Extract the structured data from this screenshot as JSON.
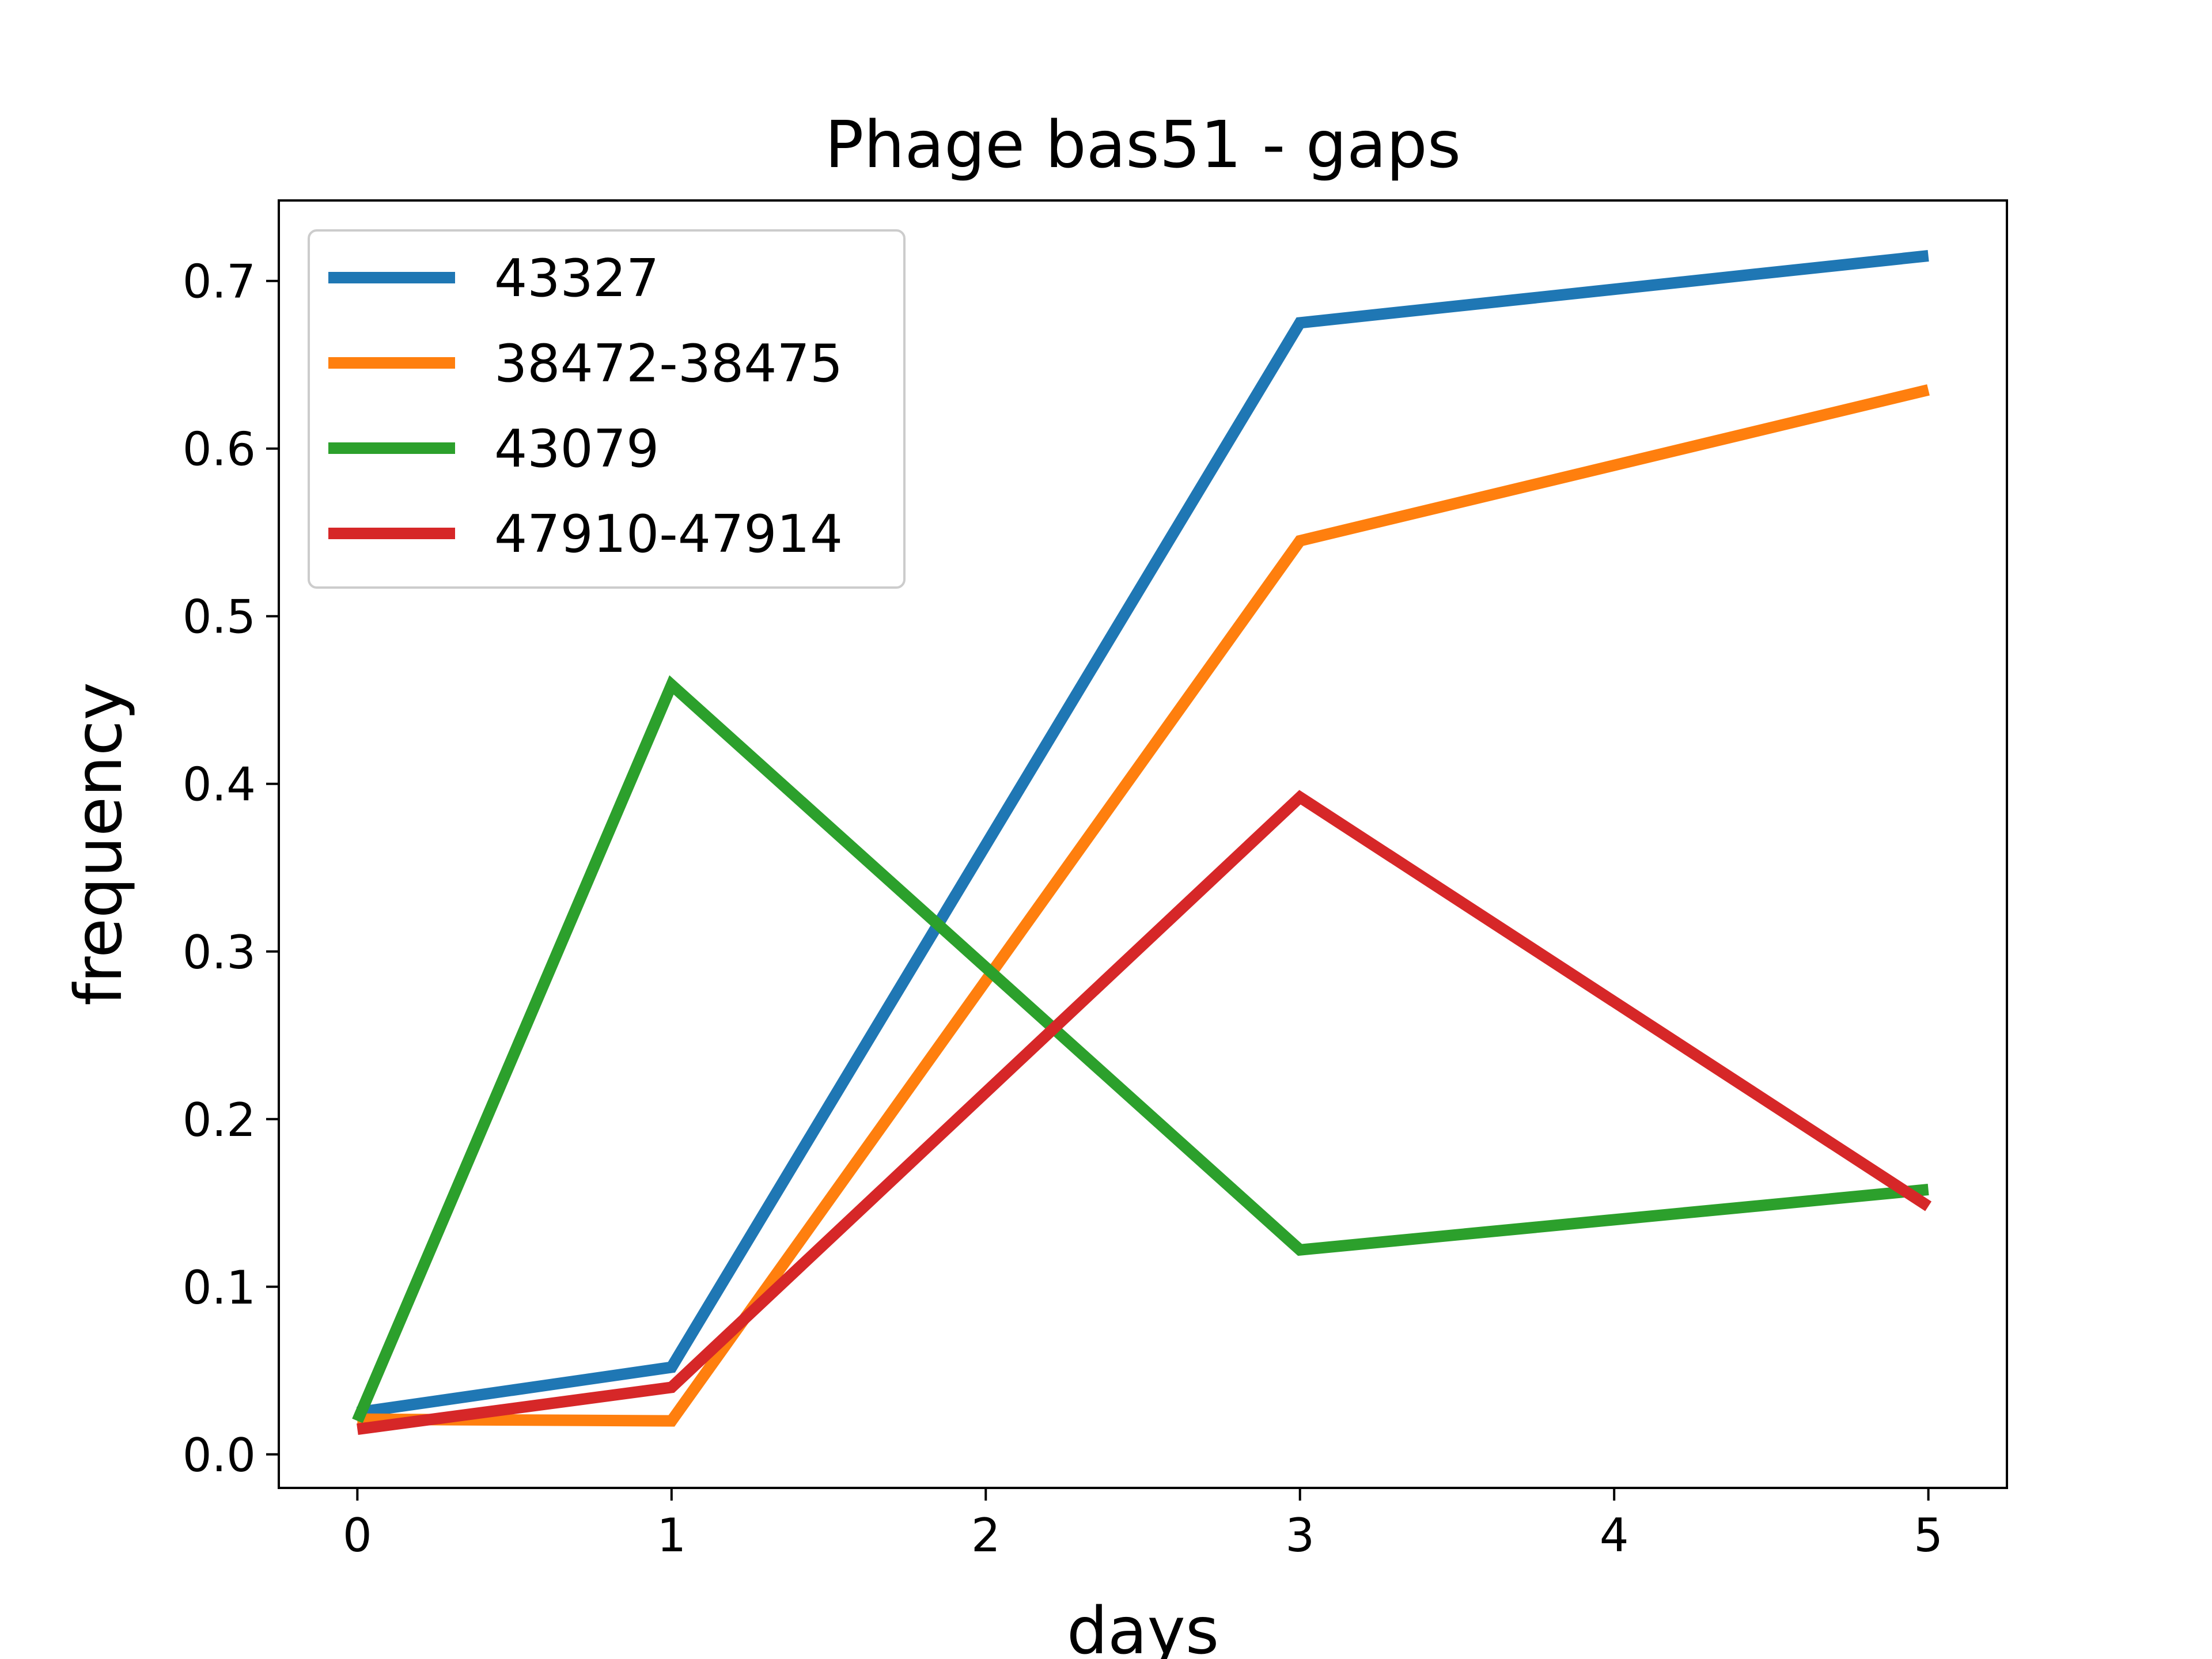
{
  "chart_data": {
    "type": "line",
    "title": "Phage bas51 - gaps",
    "xlabel": "days",
    "ylabel": "frequency",
    "x": [
      0,
      1,
      3,
      5
    ],
    "xlim": [
      -0.25,
      5.25
    ],
    "ylim": [
      -0.02,
      0.748
    ],
    "xticks": [
      0,
      1,
      2,
      3,
      4,
      5
    ],
    "yticks": [
      0.0,
      0.1,
      0.2,
      0.3,
      0.4,
      0.5,
      0.6,
      0.7
    ],
    "ytick_labels": [
      "0.0",
      "0.1",
      "0.2",
      "0.3",
      "0.4",
      "0.5",
      "0.6",
      "0.7"
    ],
    "grid": false,
    "legend_position": "upper-left",
    "series": [
      {
        "name": "43327",
        "color": "#1f77b4",
        "values": [
          0.025,
          0.052,
          0.675,
          0.715
        ]
      },
      {
        "name": "38472-38475",
        "color": "#ff7f0e",
        "values": [
          0.021,
          0.02,
          0.545,
          0.635
        ]
      },
      {
        "name": "43079",
        "color": "#2ca02c",
        "values": [
          0.02,
          0.459,
          0.122,
          0.158
        ]
      },
      {
        "name": "47910-47914",
        "color": "#d62728",
        "values": [
          0.015,
          0.04,
          0.392,
          0.148
        ]
      }
    ]
  }
}
